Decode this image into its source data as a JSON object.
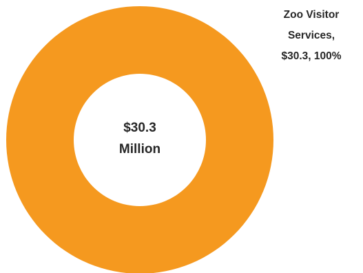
{
  "chart_data": {
    "type": "pie",
    "variant": "donut",
    "categories": [
      "Zoo Visitor Services"
    ],
    "values": [
      30.3
    ],
    "colors": [
      "#F5991F"
    ],
    "center_label": {
      "line1": "$30.3",
      "line2": "Million"
    },
    "data_labels": [
      {
        "line1": "Zoo Visitor",
        "line2": "Services,",
        "line3": "$30.3, 100%"
      }
    ],
    "title": "",
    "legend": "none"
  }
}
